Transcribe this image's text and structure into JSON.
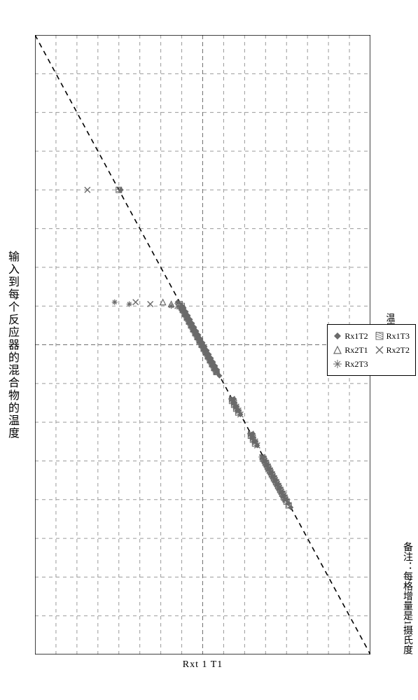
{
  "chart": {
    "type": "scatter",
    "title": "输入到每个反应器的混合物的温度",
    "x_axis_label": "Rxt 1  T1",
    "y_axis_label": "温度（摄氏度）",
    "note": "备注：每格增量是1摄氏度",
    "background_color": "#ffffff",
    "plot_border_color": "#000000",
    "plot_border_width": 1.5,
    "grid_color": "#9a9a9a",
    "grid_dash": "5,5",
    "grid_width": 1,
    "center_grid_color": "#707070",
    "center_grid_dash": "6,4",
    "diagonal": {
      "color": "#000000",
      "dash": "7,6",
      "width": 1.6
    },
    "x_range": [
      0,
      16
    ],
    "y_range": [
      0,
      16
    ],
    "x_tick_step": 1,
    "y_tick_step": 1,
    "title_fontsize": 16,
    "axis_label_fontsize": 14,
    "legend_fontsize": 12,
    "legend_border_color": "#000000",
    "legend_bg": "#ffffff",
    "series": [
      {
        "name": "Rx1T2",
        "marker": "diamond",
        "color": "#6a6a6a",
        "size": 8,
        "points": [
          [
            4.0,
            4.1
          ],
          [
            6.9,
            6.8
          ],
          [
            7.0,
            7.0
          ],
          [
            7.05,
            7.1
          ],
          [
            7.1,
            7.1
          ],
          [
            7.15,
            7.2
          ],
          [
            7.2,
            7.2
          ],
          [
            7.25,
            7.3
          ],
          [
            7.3,
            7.3
          ],
          [
            7.35,
            7.4
          ],
          [
            7.4,
            7.4
          ],
          [
            7.45,
            7.5
          ],
          [
            7.5,
            7.5
          ],
          [
            7.55,
            7.6
          ],
          [
            7.6,
            7.6
          ],
          [
            7.65,
            7.7
          ],
          [
            7.7,
            7.7
          ],
          [
            7.75,
            7.8
          ],
          [
            7.8,
            7.8
          ],
          [
            7.85,
            7.9
          ],
          [
            7.9,
            7.9
          ],
          [
            7.95,
            8.0
          ],
          [
            8.0,
            8.0
          ],
          [
            8.05,
            8.1
          ],
          [
            8.1,
            8.1
          ],
          [
            8.15,
            8.2
          ],
          [
            8.2,
            8.2
          ],
          [
            8.25,
            8.3
          ],
          [
            8.3,
            8.3
          ],
          [
            8.35,
            8.4
          ],
          [
            8.4,
            8.4
          ],
          [
            8.45,
            8.5
          ],
          [
            8.5,
            8.5
          ],
          [
            8.55,
            8.6
          ],
          [
            8.6,
            8.6
          ],
          [
            8.65,
            8.7
          ],
          [
            8.7,
            8.7
          ],
          [
            8.8,
            8.8
          ],
          [
            9.4,
            9.5
          ],
          [
            9.5,
            9.5
          ],
          [
            9.6,
            9.6
          ],
          [
            9.7,
            9.7
          ],
          [
            9.8,
            9.8
          ],
          [
            10.3,
            10.4
          ],
          [
            10.4,
            10.4
          ],
          [
            10.5,
            10.5
          ],
          [
            10.6,
            10.6
          ],
          [
            10.9,
            10.9
          ],
          [
            11.0,
            11.0
          ],
          [
            11.1,
            11.1
          ],
          [
            11.2,
            11.2
          ],
          [
            11.3,
            11.3
          ],
          [
            11.4,
            11.4
          ],
          [
            11.5,
            11.5
          ],
          [
            11.6,
            11.6
          ],
          [
            11.7,
            11.7
          ],
          [
            11.8,
            11.8
          ],
          [
            11.9,
            11.9
          ],
          [
            12.0,
            12.0
          ],
          [
            12.1,
            12.1
          ],
          [
            12.2,
            12.2
          ]
        ]
      },
      {
        "name": "Rx1T3",
        "marker": "hatch-square",
        "color": "#6a6a6a",
        "size": 8,
        "points": [
          [
            4.0,
            4.0
          ],
          [
            6.95,
            6.9
          ],
          [
            7.0,
            7.0
          ],
          [
            7.1,
            7.05
          ],
          [
            7.2,
            7.15
          ],
          [
            7.3,
            7.25
          ],
          [
            7.4,
            7.35
          ],
          [
            7.5,
            7.45
          ],
          [
            7.6,
            7.55
          ],
          [
            7.7,
            7.65
          ],
          [
            7.8,
            7.75
          ],
          [
            7.9,
            7.85
          ],
          [
            8.0,
            7.95
          ],
          [
            8.1,
            8.05
          ],
          [
            8.2,
            8.15
          ],
          [
            8.3,
            8.25
          ],
          [
            8.4,
            8.35
          ],
          [
            8.5,
            8.45
          ],
          [
            8.6,
            8.55
          ],
          [
            8.7,
            8.65
          ],
          [
            9.45,
            9.4
          ],
          [
            9.55,
            9.5
          ],
          [
            9.65,
            9.6
          ],
          [
            9.75,
            9.7
          ],
          [
            10.35,
            10.3
          ],
          [
            10.45,
            10.4
          ],
          [
            10.55,
            10.5
          ],
          [
            10.95,
            10.9
          ],
          [
            11.05,
            11.0
          ],
          [
            11.15,
            11.1
          ],
          [
            11.25,
            11.2
          ],
          [
            11.35,
            11.3
          ],
          [
            11.45,
            11.4
          ],
          [
            11.55,
            11.5
          ],
          [
            11.65,
            11.6
          ],
          [
            11.75,
            11.7
          ],
          [
            11.85,
            11.8
          ],
          [
            11.95,
            11.9
          ],
          [
            12.05,
            12.0
          ],
          [
            12.15,
            12.1
          ]
        ]
      },
      {
        "name": "Rx2T1",
        "marker": "triangle",
        "color": "#6a6a6a",
        "size": 8,
        "points": [
          [
            6.9,
            6.1
          ],
          [
            6.95,
            6.5
          ],
          [
            7.0,
            6.9
          ],
          [
            7.0,
            7.0
          ],
          [
            7.1,
            7.1
          ],
          [
            7.2,
            7.2
          ],
          [
            7.3,
            7.3
          ],
          [
            7.4,
            7.4
          ],
          [
            7.5,
            7.5
          ],
          [
            7.6,
            7.6
          ],
          [
            7.7,
            7.7
          ],
          [
            7.8,
            7.8
          ],
          [
            7.9,
            7.9
          ],
          [
            8.0,
            8.0
          ],
          [
            8.1,
            8.1
          ],
          [
            8.2,
            8.2
          ],
          [
            8.3,
            8.3
          ],
          [
            8.4,
            8.4
          ],
          [
            8.5,
            8.5
          ],
          [
            8.6,
            8.6
          ],
          [
            8.7,
            8.7
          ]
        ]
      },
      {
        "name": "Rx2T2",
        "marker": "x",
        "color": "#6a6a6a",
        "size": 8,
        "points": [
          [
            4.0,
            2.5
          ],
          [
            6.9,
            4.8
          ],
          [
            6.95,
            5.5
          ],
          [
            7.0,
            6.8
          ],
          [
            7.05,
            7.0
          ],
          [
            7.1,
            7.05
          ],
          [
            7.2,
            7.15
          ],
          [
            7.3,
            7.25
          ],
          [
            7.4,
            7.35
          ],
          [
            7.5,
            7.45
          ],
          [
            7.6,
            7.55
          ],
          [
            7.7,
            7.65
          ],
          [
            7.8,
            7.75
          ],
          [
            7.9,
            7.85
          ],
          [
            8.0,
            7.95
          ],
          [
            8.1,
            8.05
          ],
          [
            8.2,
            8.15
          ],
          [
            8.3,
            8.25
          ],
          [
            8.4,
            8.35
          ],
          [
            8.5,
            8.45
          ],
          [
            8.6,
            8.55
          ],
          [
            8.7,
            8.65
          ],
          [
            9.4,
            9.4
          ],
          [
            9.5,
            9.5
          ],
          [
            9.6,
            9.6
          ],
          [
            9.7,
            9.7
          ],
          [
            9.8,
            9.8
          ],
          [
            10.3,
            10.3
          ],
          [
            10.4,
            10.4
          ],
          [
            10.5,
            10.5
          ],
          [
            10.6,
            10.6
          ],
          [
            10.9,
            10.85
          ],
          [
            11.0,
            10.95
          ],
          [
            11.1,
            11.05
          ],
          [
            11.2,
            11.15
          ],
          [
            11.3,
            11.25
          ],
          [
            11.4,
            11.35
          ],
          [
            11.5,
            11.45
          ],
          [
            11.6,
            11.55
          ],
          [
            11.7,
            11.65
          ],
          [
            11.8,
            11.75
          ],
          [
            11.9,
            11.85
          ],
          [
            12.0,
            11.95
          ]
        ]
      },
      {
        "name": "Rx2T3",
        "marker": "asterisk",
        "color": "#6a6a6a",
        "size": 8,
        "points": [
          [
            6.9,
            3.8
          ],
          [
            6.95,
            4.5
          ],
          [
            7.0,
            6.5
          ],
          [
            7.05,
            6.95
          ],
          [
            7.1,
            7.0
          ],
          [
            7.2,
            7.1
          ],
          [
            7.3,
            7.2
          ],
          [
            7.4,
            7.3
          ],
          [
            7.5,
            7.4
          ],
          [
            7.6,
            7.5
          ],
          [
            7.7,
            7.6
          ],
          [
            7.8,
            7.7
          ],
          [
            7.9,
            7.8
          ],
          [
            8.0,
            7.9
          ],
          [
            8.1,
            8.0
          ],
          [
            8.2,
            8.1
          ],
          [
            8.3,
            8.2
          ],
          [
            8.4,
            8.3
          ],
          [
            8.5,
            8.4
          ],
          [
            8.6,
            8.5
          ],
          [
            8.7,
            8.6
          ],
          [
            9.4,
            9.35
          ],
          [
            9.5,
            9.45
          ],
          [
            9.6,
            9.55
          ],
          [
            9.7,
            9.65
          ],
          [
            10.3,
            10.25
          ],
          [
            10.4,
            10.35
          ],
          [
            10.5,
            10.45
          ],
          [
            10.9,
            10.8
          ],
          [
            11.0,
            10.9
          ],
          [
            11.1,
            11.0
          ],
          [
            11.2,
            11.1
          ],
          [
            11.3,
            11.2
          ],
          [
            11.4,
            11.3
          ],
          [
            11.5,
            11.4
          ],
          [
            11.6,
            11.5
          ],
          [
            11.7,
            11.6
          ],
          [
            11.8,
            11.7
          ],
          [
            11.9,
            11.8
          ],
          [
            12.0,
            11.9
          ]
        ]
      }
    ],
    "legend_layout": [
      [
        "Rx1T2",
        "Rx1T3"
      ],
      [
        "Rx2T1",
        "Rx2T2"
      ],
      [
        "Rx2T3"
      ]
    ]
  }
}
